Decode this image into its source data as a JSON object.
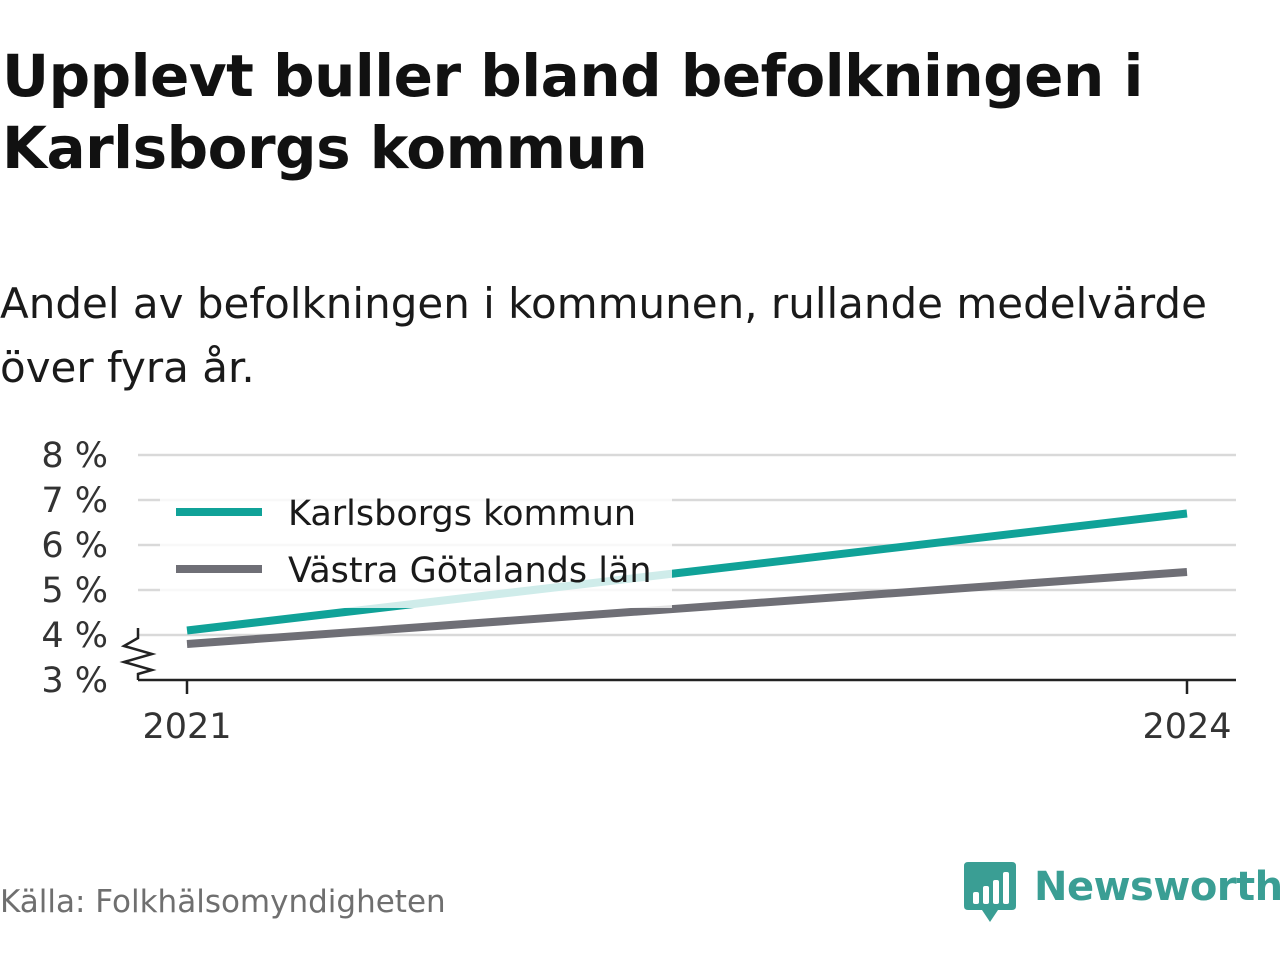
{
  "header": {
    "title": "Upplevt buller bland befolkningen i Karlsborgs kommun",
    "subtitle": "Andel av befolkningen i kommunen, rullande medelvärde över fyra år."
  },
  "footer": {
    "source": "Källa: Folkhälsomyndigheten",
    "brand": "Newsworthy"
  },
  "colors": {
    "series_primary": "#10a298",
    "series_secondary": "#6f6f76",
    "brand": "#3a9e94",
    "grid": "#d9d9d9",
    "axis": "#222222"
  },
  "chart_data": {
    "type": "line",
    "title": "Upplevt buller bland befolkningen i Karlsborgs kommun",
    "subtitle": "Andel av befolkningen i kommunen, rullande medelvärde över fyra år.",
    "x": [
      2021,
      2024
    ],
    "x_tick_labels": [
      "2021",
      "2024"
    ],
    "ylim": [
      3,
      8
    ],
    "y_ticks": [
      3,
      4,
      5,
      6,
      7,
      8
    ],
    "y_tick_labels": [
      "3 %",
      "4 %",
      "5 %",
      "6 %",
      "7 %",
      "8 %"
    ],
    "y_axis_break": true,
    "grid": true,
    "legend_position": "top-left",
    "series": [
      {
        "name": "Karlsborgs kommun",
        "values": [
          4.1,
          6.7
        ],
        "color": "#10a298"
      },
      {
        "name": "Västra Götalands län",
        "values": [
          3.8,
          5.4
        ],
        "color": "#6f6f76"
      }
    ]
  }
}
